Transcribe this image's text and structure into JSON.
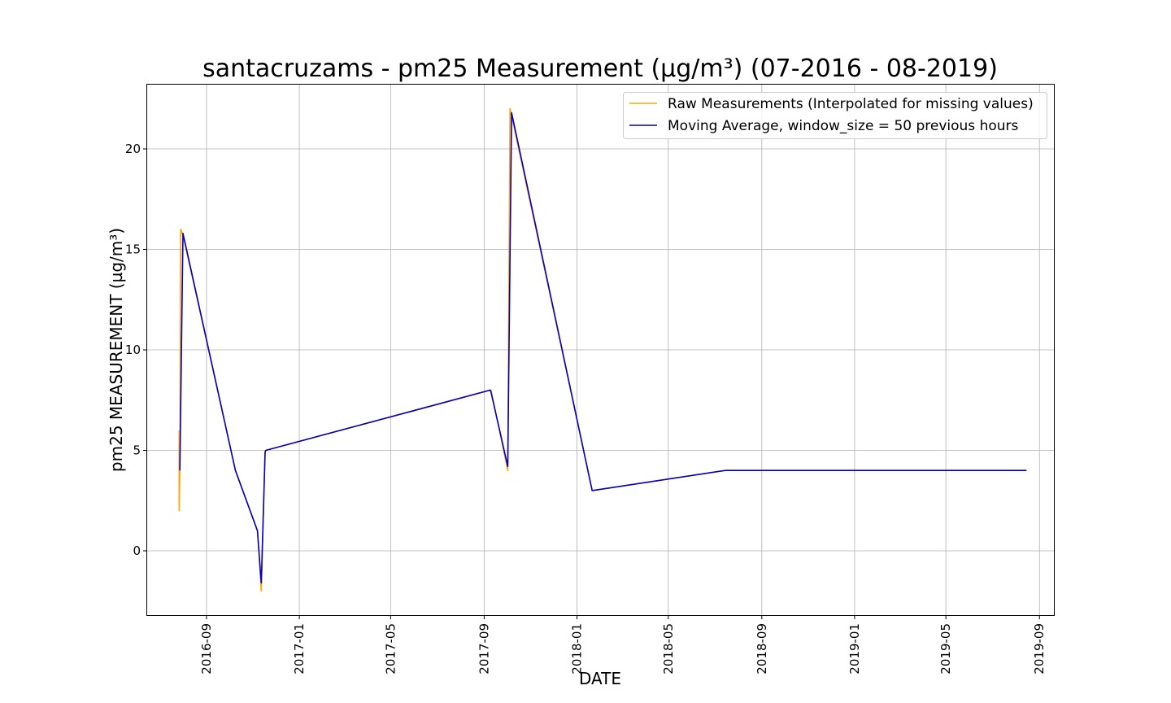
{
  "chart_data": {
    "type": "line",
    "title": "santacruzams - pm25 Measurement (µg/m³) (07-2016 - 08-2019)",
    "xlabel": "DATE",
    "ylabel": "pm25 MEASUREMENT (µg/m³)",
    "xlim": [
      "2016-06-15",
      "2019-09-20"
    ],
    "ylim": [
      -3.2,
      23.2
    ],
    "grid": true,
    "legend_position": "top-right",
    "x_ticks": [
      "2016-09",
      "2017-01",
      "2017-05",
      "2017-09",
      "2018-01",
      "2018-05",
      "2018-09",
      "2019-01",
      "2019-05",
      "2019-09"
    ],
    "y_ticks": [
      0,
      5,
      10,
      15,
      20
    ],
    "series": [
      {
        "name": "Raw Measurements (Interpolated for missing values)",
        "color": "#ffa500",
        "points": [
          [
            "2016-07-27",
            6
          ],
          [
            "2016-07-27",
            2
          ],
          [
            "2016-07-28",
            4
          ],
          [
            "2016-07-29",
            16
          ],
          [
            "2016-08-01",
            15.7
          ],
          [
            "2016-10-09",
            4
          ],
          [
            "2016-11-07",
            1
          ],
          [
            "2016-11-12",
            -2
          ],
          [
            "2016-11-17",
            5
          ],
          [
            "2016-11-18",
            5
          ],
          [
            "2017-09-10",
            8
          ],
          [
            "2017-10-02",
            4
          ],
          [
            "2017-10-05",
            22
          ],
          [
            "2018-01-21",
            3
          ],
          [
            "2018-07-15",
            4
          ],
          [
            "2019-08-15",
            4
          ]
        ]
      },
      {
        "name": "Moving Average, window_size = 50 previous hours",
        "color": "#0000cd",
        "points": [
          [
            "2016-07-28",
            4
          ],
          [
            "2016-08-01",
            15.8
          ],
          [
            "2016-10-09",
            4
          ],
          [
            "2016-11-07",
            1
          ],
          [
            "2016-11-12",
            -1.6
          ],
          [
            "2016-11-17",
            4.9
          ],
          [
            "2016-11-18",
            5
          ],
          [
            "2017-09-09",
            8
          ],
          [
            "2017-09-10",
            7.9
          ],
          [
            "2017-10-02",
            4.2
          ],
          [
            "2017-10-07",
            21.8
          ],
          [
            "2018-01-21",
            3
          ],
          [
            "2018-07-15",
            4
          ],
          [
            "2019-08-15",
            4
          ]
        ]
      }
    ]
  }
}
